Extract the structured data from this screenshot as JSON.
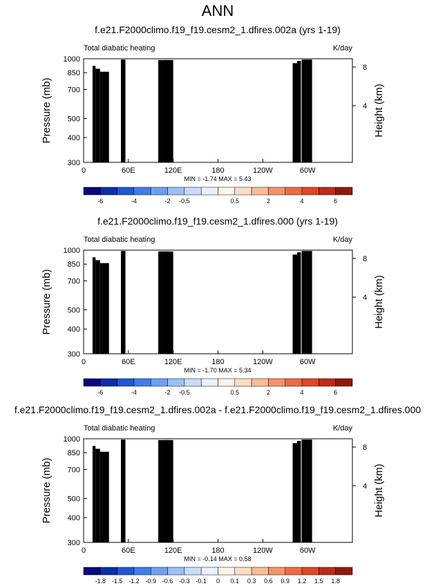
{
  "figure": {
    "title": "ANN"
  },
  "palettes": {
    "full": [
      "#08087a",
      "#0c2fa8",
      "#1f57d6",
      "#3f7ee6",
      "#6da0f0",
      "#9cc0f5",
      "#c8dcfa",
      "#e8f1fd",
      "#fdf3ea",
      "#fbdcc4",
      "#f8bc97",
      "#f4936a",
      "#ee6a43",
      "#df4726",
      "#bf2b16",
      "#8f1a0a"
    ],
    "diff": [
      "#08087a",
      "#0c2fa8",
      "#1f57d6",
      "#3f7ee6",
      "#6da0f0",
      "#9cc0f5",
      "#c8dcfa",
      "#e8f1fd",
      "#fdf3ea",
      "#fbdcc4",
      "#f8bc97",
      "#f4936a",
      "#ee6a43",
      "#df4726",
      "#bf2b16",
      "#8f1a0a"
    ]
  },
  "chart_data": [
    {
      "type": "heatmap",
      "title": "f.e21.F2000climo.f19_f19.cesm2_1.dfires.002a (yrs 1-19)",
      "left_label": "Total diabatic heating",
      "right_label": "K/day",
      "ylabel": "Pressure (mb)",
      "y2label": "Height (km)",
      "xticks": [
        "0",
        "60E",
        "120E",
        "180",
        "120W",
        "60W"
      ],
      "yticks": [
        "300",
        "400",
        "500",
        "700",
        "850",
        "1000"
      ],
      "y2ticks": [
        "8",
        "4"
      ],
      "minmax": "MIN = -1.74  MAX =  5.43",
      "colorbar": [
        "-6",
        "-4",
        "-2",
        "-0.5",
        "0.5",
        "2",
        "4",
        "6"
      ],
      "palette": "full",
      "levels": [
        -6,
        -5,
        -4,
        -3,
        -2,
        -1,
        -0.5,
        -0.25,
        0.25,
        0.5,
        1,
        2,
        3,
        4,
        5,
        6
      ],
      "xlim": [
        0,
        360
      ],
      "ylim": [
        1000,
        300
      ],
      "scale": 1.0
    },
    {
      "type": "heatmap",
      "title": "f.e21.F2000climo.f19_f19.cesm2_1.dfires.000 (yrs 1-19)",
      "left_label": "Total diabatic heating",
      "right_label": "K/day",
      "ylabel": "Pressure (mb)",
      "y2label": "Height (km)",
      "xticks": [
        "0",
        "60E",
        "120E",
        "180",
        "120W",
        "60W"
      ],
      "yticks": [
        "300",
        "400",
        "500",
        "700",
        "850",
        "1000"
      ],
      "y2ticks": [
        "8",
        "4"
      ],
      "minmax": "MIN = -1.70  MAX =  5.34",
      "colorbar": [
        "-6",
        "-4",
        "-2",
        "-0.5",
        "0.5",
        "2",
        "4",
        "6"
      ],
      "palette": "full",
      "levels": [
        -6,
        -5,
        -4,
        -3,
        -2,
        -1,
        -0.5,
        -0.25,
        0.25,
        0.5,
        1,
        2,
        3,
        4,
        5,
        6
      ],
      "xlim": [
        0,
        360
      ],
      "ylim": [
        1000,
        300
      ],
      "scale": 0.985
    },
    {
      "type": "heatmap",
      "title": "f.e21.F2000climo.f19_f19.cesm2_1.dfires.002a - f.e21.F2000climo.f19_f19.cesm2_1.dfires.000",
      "left_label": "Total diabatic heating",
      "right_label": "K/day",
      "ylabel": "Pressure (mb)",
      "y2label": "Height (km)",
      "xticks": [
        "0",
        "60E",
        "120E",
        "180",
        "120W",
        "60W"
      ],
      "yticks": [
        "300",
        "400",
        "500",
        "700",
        "850",
        "1000"
      ],
      "y2ticks": [
        "8",
        "4"
      ],
      "minmax": "MIN = -0.14  MAX =  0.58",
      "colorbar": [
        "-1.8",
        "-1.5",
        "-1.2",
        "-0.9",
        "-0.6",
        "-0.3",
        "-0.1",
        "0",
        "0.1",
        "0.3",
        "0.6",
        "0.9",
        "1.2",
        "1.5",
        "1.8"
      ],
      "palette": "diff",
      "levels": [
        -1.8,
        -1.5,
        -1.2,
        -0.9,
        -0.6,
        -0.3,
        -0.1,
        0,
        0.1,
        0.3,
        0.6,
        0.9,
        1.2,
        1.5,
        1.8
      ],
      "xlim": [
        0,
        360
      ],
      "ylim": [
        1000,
        300
      ],
      "scale": 0.1
    }
  ]
}
